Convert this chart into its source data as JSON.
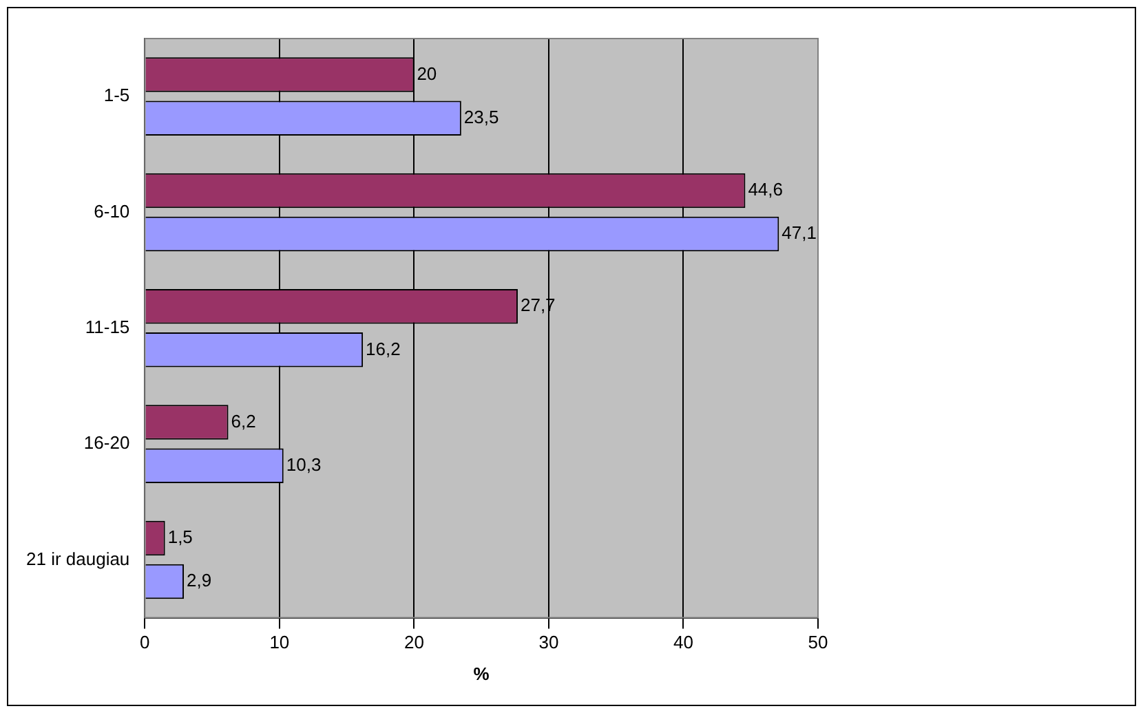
{
  "chart_data": {
    "type": "bar",
    "orientation": "horizontal",
    "xlabel": "%",
    "categories": [
      "1-5",
      "6-10",
      "11-15",
      "16-20",
      "21 ir daugiau"
    ],
    "series": [
      {
        "color": "#993366",
        "values": [
          20,
          44.6,
          27.7,
          6.2,
          1.5
        ],
        "value_labels": [
          "20",
          "44,6",
          "27,7",
          "6,2",
          "1,5"
        ]
      },
      {
        "color": "#9999ff",
        "values": [
          23.5,
          47.1,
          16.2,
          10.3,
          2.9
        ],
        "value_labels": [
          "23,5",
          "47,1",
          "16,2",
          "10,3",
          "2,9"
        ]
      }
    ],
    "xlim": [
      0,
      50
    ],
    "xticks": [
      0,
      10,
      20,
      30,
      40,
      50
    ],
    "grid": "x",
    "legend": false
  }
}
